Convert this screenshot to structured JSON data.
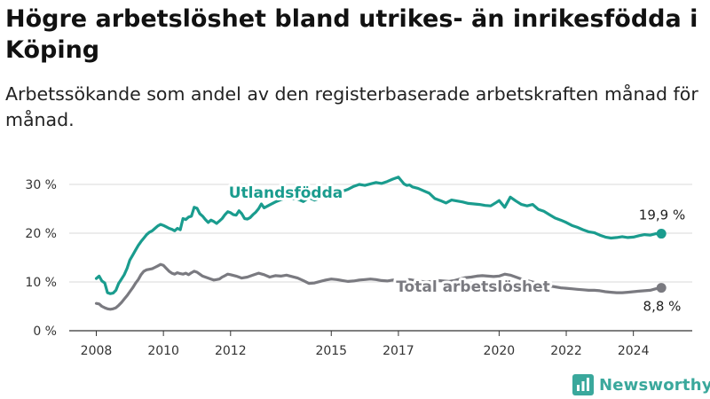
{
  "title": "Högre arbetslöshet bland utrikes- än inrikesfödda i Köping",
  "subtitle": "Arbetssökande som andel av den registerbaserade arbetskraften månad för månad.",
  "brand": {
    "name": "Newsworthy",
    "color": "#3aa89c",
    "icon": "bar-chart-icon"
  },
  "chart_data": {
    "type": "line",
    "xlim": [
      "2008-01",
      "2025-01"
    ],
    "ylim": [
      0,
      30
    ],
    "y_ticks": [
      0,
      10,
      20,
      30
    ],
    "y_tick_labels": [
      "0 %",
      "10 %",
      "20 %",
      "30 %"
    ],
    "x_ticks": [
      "2008",
      "2010",
      "2012",
      "2015",
      "2017",
      "2020",
      "2022",
      "2024"
    ],
    "grid": true,
    "series": [
      {
        "name": "Utlandsfödda",
        "color": "#1a9c8e",
        "end_label": "19,9 %",
        "x": [
          "2008-01",
          "2008-02",
          "2008-03",
          "2008-04",
          "2008-05",
          "2008-06",
          "2008-07",
          "2008-08",
          "2008-09",
          "2008-10",
          "2008-11",
          "2008-12",
          "2009-01",
          "2009-02",
          "2009-03",
          "2009-04",
          "2009-05",
          "2009-06",
          "2009-07",
          "2009-08",
          "2009-09",
          "2009-10",
          "2009-11",
          "2009-12",
          "2010-01",
          "2010-02",
          "2010-03",
          "2010-04",
          "2010-05",
          "2010-06",
          "2010-07",
          "2010-08",
          "2010-09",
          "2010-10",
          "2010-11",
          "2010-12",
          "2011-01",
          "2011-02",
          "2011-03",
          "2011-04",
          "2011-05",
          "2011-06",
          "2011-07",
          "2011-08",
          "2011-09",
          "2011-10",
          "2011-11",
          "2011-12",
          "2012-01",
          "2012-02",
          "2012-03",
          "2012-04",
          "2012-05",
          "2012-06",
          "2012-07",
          "2012-08",
          "2012-09",
          "2012-10",
          "2012-11",
          "2012-12",
          "2013-01",
          "2013-03",
          "2013-05",
          "2013-07",
          "2013-09",
          "2013-11",
          "2014-01",
          "2014-03",
          "2014-05",
          "2014-07",
          "2014-09",
          "2014-11",
          "2015-01",
          "2015-03",
          "2015-05",
          "2015-07",
          "2015-09",
          "2015-11",
          "2016-01",
          "2016-03",
          "2016-05",
          "2016-07",
          "2016-09",
          "2016-11",
          "2017-01",
          "2017-02",
          "2017-03",
          "2017-04",
          "2017-05",
          "2017-06",
          "2017-08",
          "2017-10",
          "2017-12",
          "2018-02",
          "2018-04",
          "2018-06",
          "2018-08",
          "2018-10",
          "2018-12",
          "2019-02",
          "2019-04",
          "2019-06",
          "2019-08",
          "2019-10",
          "2019-12",
          "2020-01",
          "2020-03",
          "2020-05",
          "2020-07",
          "2020-09",
          "2020-11",
          "2021-01",
          "2021-03",
          "2021-05",
          "2021-07",
          "2021-09",
          "2021-11",
          "2022-01",
          "2022-03",
          "2022-05",
          "2022-07",
          "2022-09",
          "2022-11",
          "2023-01",
          "2023-03",
          "2023-05",
          "2023-07",
          "2023-09",
          "2023-11",
          "2024-01",
          "2024-03",
          "2024-05",
          "2024-07",
          "2024-09",
          "2024-11"
        ],
        "values": [
          10.7,
          11.2,
          10.2,
          9.8,
          7.8,
          7.6,
          7.7,
          8.3,
          9.7,
          10.6,
          11.5,
          12.8,
          14.5,
          15.5,
          16.5,
          17.5,
          18.3,
          19.0,
          19.7,
          20.2,
          20.5,
          21.0,
          21.5,
          21.8,
          21.6,
          21.3,
          21.0,
          20.8,
          20.5,
          21.0,
          20.7,
          23.0,
          22.8,
          23.3,
          23.5,
          25.3,
          25.1,
          24.0,
          23.5,
          22.8,
          22.2,
          22.7,
          22.4,
          22.0,
          22.5,
          23.0,
          23.8,
          24.4,
          24.2,
          23.8,
          23.7,
          24.6,
          24.0,
          23.0,
          22.9,
          23.2,
          23.8,
          24.3,
          25.0,
          26.0,
          25.2,
          25.8,
          26.4,
          26.9,
          27.2,
          27.1,
          27.0,
          26.5,
          27.3,
          26.8,
          27.2,
          27.6,
          27.9,
          28.3,
          28.6,
          29.0,
          29.6,
          30.0,
          29.8,
          30.1,
          30.4,
          30.2,
          30.6,
          31.1,
          31.5,
          30.8,
          30.1,
          29.8,
          29.9,
          29.5,
          29.2,
          28.7,
          28.2,
          27.1,
          26.7,
          26.2,
          26.8,
          26.6,
          26.4,
          26.1,
          26.0,
          25.9,
          25.7,
          25.6,
          26.3,
          26.7,
          25.3,
          27.4,
          26.6,
          25.9,
          25.6,
          25.9,
          24.9,
          24.5,
          23.8,
          23.1,
          22.7,
          22.2,
          21.6,
          21.2,
          20.7,
          20.3,
          20.1,
          19.6,
          19.2,
          19.0,
          19.1,
          19.3,
          19.1,
          19.2,
          19.5,
          19.7,
          19.6,
          19.9,
          19.9
        ]
      },
      {
        "name": "Total arbetslöshet",
        "color": "#7a7a80",
        "end_label": "8,8 %",
        "x": [
          "2008-01",
          "2008-02",
          "2008-03",
          "2008-04",
          "2008-05",
          "2008-06",
          "2008-07",
          "2008-08",
          "2008-09",
          "2008-10",
          "2008-11",
          "2008-12",
          "2009-01",
          "2009-02",
          "2009-03",
          "2009-04",
          "2009-05",
          "2009-06",
          "2009-07",
          "2009-08",
          "2009-09",
          "2009-10",
          "2009-11",
          "2009-12",
          "2010-01",
          "2010-02",
          "2010-03",
          "2010-04",
          "2010-05",
          "2010-06",
          "2010-07",
          "2010-08",
          "2010-09",
          "2010-10",
          "2010-11",
          "2010-12",
          "2011-01",
          "2011-02",
          "2011-03",
          "2011-04",
          "2011-05",
          "2011-06",
          "2011-07",
          "2011-08",
          "2011-09",
          "2011-10",
          "2011-11",
          "2011-12",
          "2012-01",
          "2012-03",
          "2012-05",
          "2012-07",
          "2012-09",
          "2012-11",
          "2013-01",
          "2013-03",
          "2013-05",
          "2013-07",
          "2013-09",
          "2013-11",
          "2014-01",
          "2014-03",
          "2014-05",
          "2014-07",
          "2014-09",
          "2014-11",
          "2015-01",
          "2015-03",
          "2015-05",
          "2015-07",
          "2015-09",
          "2015-11",
          "2016-01",
          "2016-03",
          "2016-05",
          "2016-07",
          "2016-09",
          "2016-11",
          "2017-01",
          "2017-03",
          "2017-05",
          "2017-07",
          "2017-09",
          "2017-11",
          "2018-01",
          "2018-03",
          "2018-05",
          "2018-07",
          "2018-09",
          "2018-11",
          "2019-01",
          "2019-03",
          "2019-05",
          "2019-07",
          "2019-09",
          "2019-11",
          "2020-01",
          "2020-03",
          "2020-05",
          "2020-07",
          "2020-09",
          "2020-11",
          "2021-01",
          "2021-03",
          "2021-05",
          "2021-07",
          "2021-09",
          "2021-11",
          "2022-01",
          "2022-03",
          "2022-05",
          "2022-07",
          "2022-09",
          "2022-11",
          "2023-01",
          "2023-03",
          "2023-05",
          "2023-07",
          "2023-09",
          "2023-11",
          "2024-01",
          "2024-03",
          "2024-05",
          "2024-07",
          "2024-09",
          "2024-11"
        ],
        "values": [
          5.6,
          5.5,
          5.0,
          4.7,
          4.5,
          4.4,
          4.5,
          4.7,
          5.2,
          5.8,
          6.5,
          7.2,
          8.0,
          8.8,
          9.7,
          10.5,
          11.5,
          12.2,
          12.5,
          12.6,
          12.7,
          13.0,
          13.3,
          13.6,
          13.4,
          12.8,
          12.2,
          11.8,
          11.6,
          11.9,
          11.7,
          11.6,
          11.8,
          11.5,
          11.9,
          12.2,
          12.0,
          11.6,
          11.2,
          11.0,
          10.8,
          10.6,
          10.4,
          10.5,
          10.6,
          11.0,
          11.3,
          11.6,
          11.5,
          11.2,
          10.8,
          11.0,
          11.4,
          11.8,
          11.5,
          11.0,
          11.3,
          11.2,
          11.4,
          11.1,
          10.8,
          10.3,
          9.7,
          9.8,
          10.1,
          10.4,
          10.6,
          10.5,
          10.3,
          10.1,
          10.2,
          10.4,
          10.5,
          10.6,
          10.5,
          10.3,
          10.2,
          10.4,
          10.2,
          10.4,
          10.5,
          10.3,
          10.1,
          10.0,
          10.1,
          10.3,
          10.2,
          10.1,
          10.3,
          10.6,
          10.9,
          11.0,
          11.2,
          11.3,
          11.2,
          11.1,
          11.2,
          11.6,
          11.4,
          11.0,
          10.6,
          10.3,
          10.0,
          9.7,
          9.4,
          9.2,
          9.0,
          8.8,
          8.7,
          8.6,
          8.5,
          8.4,
          8.3,
          8.3,
          8.2,
          8.0,
          7.9,
          7.8,
          7.8,
          7.9,
          8.0,
          8.1,
          8.2,
          8.3,
          8.6,
          8.8
        ]
      }
    ]
  }
}
